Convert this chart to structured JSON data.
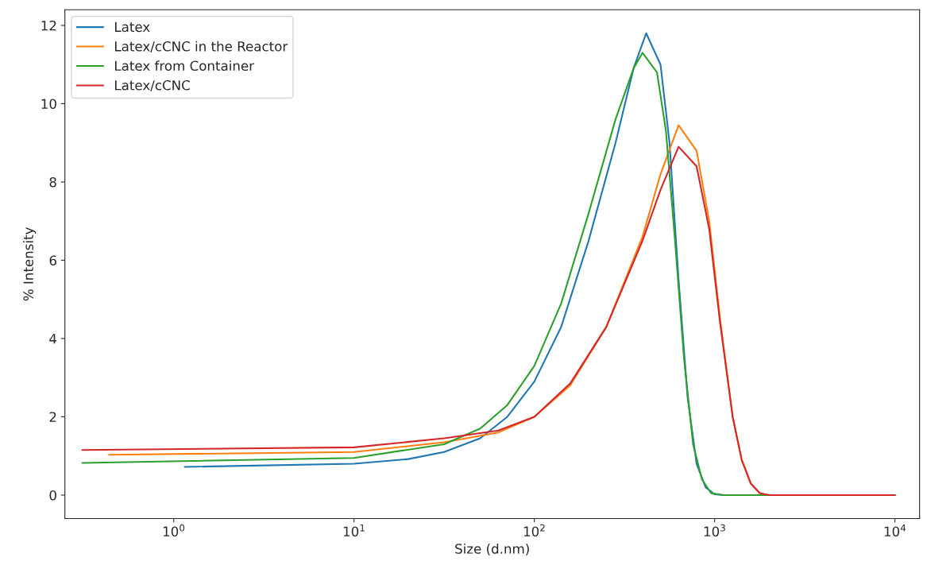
{
  "chart_data": {
    "type": "line",
    "xlabel": "Size (d.nm)",
    "ylabel": "% Intensity",
    "log": "x",
    "grid": false,
    "legend": "top left",
    "xlim": [
      0.249,
      13700
    ],
    "ylim": [
      -0.6,
      12.4
    ],
    "xticks": [
      {
        "value": 1,
        "label": "10$^{0}$"
      },
      {
        "value": 10,
        "label": "10$^{1}$"
      },
      {
        "value": 100,
        "label": "10$^{2}$"
      },
      {
        "value": 1000,
        "label": "10$^{3}$"
      },
      {
        "value": 10000,
        "label": "10$^{4}$"
      }
    ],
    "yticks": [
      0,
      2,
      4,
      6,
      8,
      10,
      12
    ],
    "series": [
      {
        "name": "Latex",
        "color": "#1f77b4",
        "x": [
          1.15,
          10,
          20,
          31.6,
          50.1,
          70.8,
          100,
          141,
          200,
          282,
          355,
          417,
          501,
          562,
          631,
          708,
          794,
          891,
          1000,
          1122,
          10000
        ],
        "values": [
          0.72,
          0.8,
          0.92,
          1.1,
          1.45,
          2.0,
          2.9,
          4.3,
          6.5,
          9.0,
          10.9,
          11.8,
          11.0,
          9.0,
          5.5,
          2.5,
          0.8,
          0.2,
          0.02,
          0,
          0
        ]
      },
      {
        "name": "Latex/cCNC in the Reactor",
        "color": "#ff7f0e",
        "x": [
          0.437,
          10,
          31.6,
          63.1,
          100,
          158,
          251,
          398,
          501,
          631,
          794,
          933,
          1072,
          1259,
          1413,
          1585,
          1778,
          1995,
          10000
        ],
        "values": [
          1.03,
          1.1,
          1.35,
          1.6,
          2.0,
          2.8,
          4.3,
          6.6,
          8.2,
          9.45,
          8.8,
          7.0,
          4.5,
          2.0,
          0.9,
          0.3,
          0.05,
          0,
          0
        ]
      },
      {
        "name": "Latex from Container",
        "color": "#2ca02c",
        "x": [
          0.311,
          10,
          31.6,
          50.1,
          70.8,
          100,
          141,
          200,
          282,
          355,
          398,
          479,
          537,
          603,
          676,
          759,
          851,
          955,
          1122,
          10000
        ],
        "values": [
          0.82,
          0.95,
          1.3,
          1.7,
          2.3,
          3.3,
          4.9,
          7.2,
          9.6,
          10.9,
          11.3,
          10.8,
          9.3,
          6.5,
          3.5,
          1.3,
          0.4,
          0.05,
          0,
          0
        ]
      },
      {
        "name": "Latex/cCNC",
        "color": "#d62728",
        "x": [
          0.311,
          10,
          31.6,
          63.1,
          100,
          158,
          251,
          398,
          501,
          631,
          794,
          933,
          1072,
          1259,
          1413,
          1585,
          1778,
          1995,
          10000
        ],
        "values": [
          1.15,
          1.22,
          1.45,
          1.65,
          2.0,
          2.85,
          4.3,
          6.5,
          7.8,
          8.9,
          8.4,
          6.8,
          4.4,
          2.0,
          0.9,
          0.3,
          0.05,
          0,
          0
        ]
      }
    ]
  }
}
